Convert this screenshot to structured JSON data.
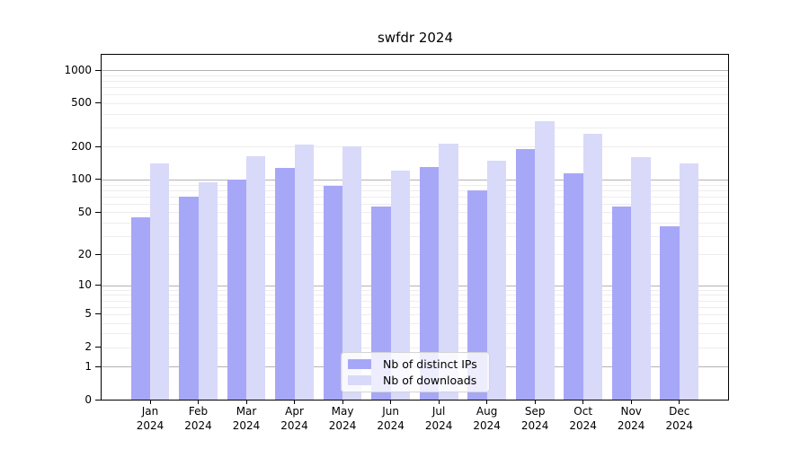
{
  "chart_data": {
    "type": "bar",
    "title": "swfdr 2024",
    "categories": [
      "Jan",
      "Feb",
      "Mar",
      "Apr",
      "May",
      "Jun",
      "Jul",
      "Aug",
      "Sep",
      "Oct",
      "Nov",
      "Dec"
    ],
    "year": "2024",
    "series": [
      {
        "name": "Nb of distinct IPs",
        "color": "#a7a7f8",
        "values": [
          45,
          70,
          100,
          127,
          88,
          56,
          130,
          79,
          192,
          115,
          56,
          37
        ]
      },
      {
        "name": "Nb of downloads",
        "color": "#d9d9f9",
        "values": [
          142,
          95,
          165,
          210,
          202,
          122,
          212,
          150,
          340,
          265,
          160,
          141
        ]
      }
    ],
    "xlabel": "",
    "ylabel": "",
    "yscale": "log(value+1)",
    "ylim": [
      0,
      1400
    ],
    "yticks": [
      0,
      1,
      2,
      5,
      10,
      20,
      50,
      100,
      200,
      500,
      1000
    ],
    "major_gridlines": [
      1,
      10,
      100,
      1000
    ],
    "minor_gridlines": [
      2,
      3,
      4,
      5,
      6,
      7,
      8,
      9,
      20,
      30,
      40,
      50,
      60,
      70,
      80,
      90,
      200,
      300,
      400,
      500,
      600,
      700,
      800,
      900
    ],
    "grid": true,
    "legend_position": "lower center",
    "colors": {
      "major_grid": "#b3b3b3",
      "minor_grid": "#ededed",
      "spine": "#000000",
      "text": "#000000",
      "legend_bg": "rgba(255,255,255,0.8)",
      "legend_border": "#d5d5d5"
    }
  }
}
